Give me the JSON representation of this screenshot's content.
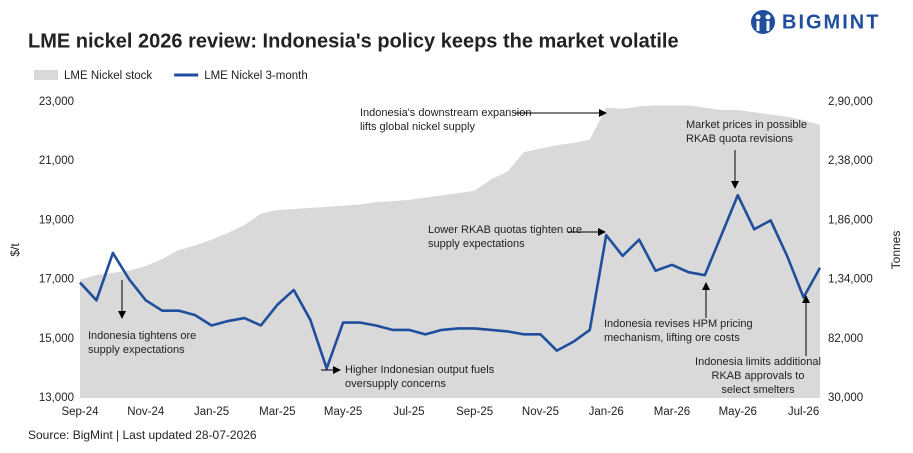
{
  "brand": "BIGMINT",
  "chart_data": {
    "type": "line",
    "title": "LME nickel 2026 review: Indonesia's policy keeps the market volatile",
    "source": "Source: BigMint | Last updated 28-07-2026",
    "y_label": "$/t",
    "y2_label": "Tonnes",
    "categories": [
      "Sep-24",
      null,
      null,
      null,
      "Nov-24",
      null,
      null,
      null,
      "Jan-25",
      null,
      null,
      null,
      "Mar-25",
      null,
      null,
      null,
      "May-25",
      null,
      null,
      null,
      "Jul-25",
      null,
      null,
      null,
      "Sep-25",
      null,
      null,
      null,
      "Nov-25",
      null,
      null,
      null,
      "Jan-26",
      null,
      null,
      null,
      "Mar-26",
      null,
      null,
      null,
      "May-26",
      null,
      null,
      null,
      "Jul-26",
      null
    ],
    "series": [
      {
        "name": "LME Nickel stock",
        "color": "#d9d9d9",
        "axis": "y2",
        "kind": "area",
        "values": [
          134000,
          138000,
          140000,
          142000,
          146000,
          152000,
          160000,
          164000,
          169000,
          175000,
          182000,
          192000,
          195000,
          196000,
          197000,
          198000,
          199000,
          200000,
          202000,
          203000,
          204000,
          206000,
          208000,
          210000,
          212000,
          222000,
          229000,
          246000,
          249000,
          252000,
          254000,
          257000,
          285000,
          284000,
          286000,
          287000,
          287000,
          287000,
          285000,
          283000,
          283000,
          281000,
          279000,
          277000,
          274000,
          270000
        ]
      },
      {
        "name": "LME Nickel 3-month",
        "color": "#1f4e9c",
        "values": [
          16900,
          16300,
          17900,
          17000,
          16300,
          15950,
          15950,
          15800,
          15450,
          15600,
          15700,
          15450,
          16150,
          16650,
          15650,
          14000,
          15550,
          15550,
          15450,
          15300,
          15300,
          15150,
          15300,
          15350,
          15350,
          15300,
          15250,
          15150,
          15150,
          14600,
          14900,
          15300,
          18500,
          17800,
          18350,
          17300,
          17500,
          17250,
          17150,
          18500,
          19850,
          18700,
          19000,
          17800,
          16400,
          17400
        ]
      }
    ],
    "ylim": [
      13000,
      23000
    ],
    "yticks": [
      {
        "value": 13000,
        "label": "13,000"
      },
      {
        "value": 15000,
        "label": "15,000"
      },
      {
        "value": 17000,
        "label": "17,000"
      },
      {
        "value": 19000,
        "label": "19,000"
      },
      {
        "value": 21000,
        "label": "21,000"
      },
      {
        "value": 23000,
        "label": "23,000"
      }
    ],
    "y2lim": [
      30000,
      290000
    ],
    "y2ticks": [
      {
        "value": 30000,
        "label": "30,000"
      },
      {
        "value": 82000,
        "label": "82,000"
      },
      {
        "value": 134000,
        "label": "1,34,000"
      },
      {
        "value": 186000,
        "label": "1,86,000"
      },
      {
        "value": 238000,
        "label": "2,38,000"
      },
      {
        "value": 290000,
        "label": "2,90,000"
      }
    ],
    "annotations": [
      [
        "Indonesia's downstream expansion",
        "lifts global nickel supply"
      ],
      [
        "Market prices in possible",
        "RKAB quota revisions"
      ],
      [
        "Lower RKAB quotas tighten ore",
        "supply expectations"
      ],
      [
        "Indonesia tightens ore",
        "supply expectations"
      ],
      [
        "Higher Indonesian output fuels",
        "oversupply concerns"
      ],
      [
        "Indonesia revises HPM pricing",
        "mechanism, lifting ore costs"
      ],
      [
        "Indonesia limits additional",
        "RKAB approvals to",
        "select smelters"
      ]
    ],
    "legend": "top-left"
  }
}
